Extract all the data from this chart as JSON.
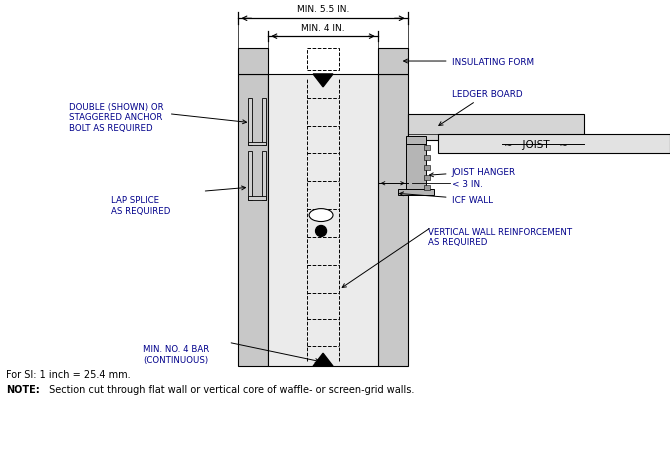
{
  "bg_color": "#ffffff",
  "line_color": "#000000",
  "label_color": "#00008B",
  "note_text": "For SI: 1 inch = 25.4 mm.",
  "note_bold": "NOTE:",
  "note_rest": " Section cut through flat wall or vertical core of waffle- or screen-grid walls.",
  "label_insulating_form": "INSULATING FORM",
  "label_ledger_board": "LEDGER BOARD",
  "label_joist": "JOIST",
  "label_joist_hanger": "JOIST HANGER",
  "label_icf_wall": "ICF WALL",
  "label_less3": "< 3 IN.",
  "label_vert_reinf": "VERTICAL WALL REINFORCEMENT\nAS REQUIRED",
  "label_min_no4": "MIN. NO. 4 BAR\n(CONTINUOUS)",
  "label_lap_splice": "LAP SPLICE\nAS REQUIRED",
  "label_anchor_bolt": "DOUBLE (SHOWN) OR\nSTAGGERED ANCHOR\nBOLT AS REQUIRED",
  "dim_55": "MIN. 5.5 IN.",
  "dim_4": "MIN. 4 IN."
}
